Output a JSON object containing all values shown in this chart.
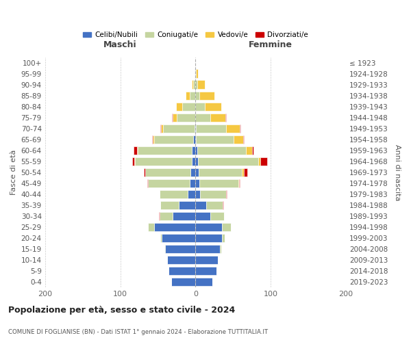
{
  "age_groups": [
    "0-4",
    "5-9",
    "10-14",
    "15-19",
    "20-24",
    "25-29",
    "30-34",
    "35-39",
    "40-44",
    "45-49",
    "50-54",
    "55-59",
    "60-64",
    "65-69",
    "70-74",
    "75-79",
    "80-84",
    "85-89",
    "90-94",
    "95-99",
    "100+"
  ],
  "birth_years": [
    "2019-2023",
    "2014-2018",
    "2009-2013",
    "2004-2008",
    "1999-2003",
    "1994-1998",
    "1989-1993",
    "1984-1988",
    "1979-1983",
    "1974-1978",
    "1969-1973",
    "1964-1968",
    "1959-1963",
    "1954-1958",
    "1949-1953",
    "1944-1948",
    "1939-1943",
    "1934-1938",
    "1929-1933",
    "1924-1928",
    "≤ 1923"
  ],
  "male": {
    "celibi": [
      32,
      36,
      38,
      40,
      45,
      55,
      30,
      22,
      10,
      8,
      7,
      5,
      5,
      3,
      1,
      0,
      0,
      0,
      0,
      0,
      0
    ],
    "coniugati": [
      0,
      0,
      0,
      1,
      2,
      8,
      18,
      25,
      38,
      55,
      60,
      75,
      72,
      52,
      42,
      25,
      18,
      8,
      3,
      1,
      0
    ],
    "vedovi": [
      0,
      0,
      0,
      0,
      0,
      0,
      0,
      0,
      0,
      0,
      0,
      1,
      1,
      2,
      3,
      5,
      8,
      5,
      2,
      0,
      0
    ],
    "divorziati": [
      0,
      0,
      0,
      0,
      0,
      0,
      1,
      0,
      0,
      1,
      2,
      3,
      4,
      1,
      1,
      1,
      0,
      0,
      0,
      0,
      0
    ]
  },
  "female": {
    "nubili": [
      22,
      28,
      30,
      32,
      35,
      35,
      20,
      14,
      6,
      5,
      4,
      3,
      2,
      1,
      1,
      0,
      0,
      0,
      0,
      0,
      0
    ],
    "coniugate": [
      0,
      0,
      0,
      2,
      4,
      12,
      18,
      22,
      35,
      52,
      58,
      80,
      65,
      50,
      40,
      20,
      12,
      5,
      2,
      1,
      0
    ],
    "vedove": [
      0,
      0,
      0,
      0,
      0,
      0,
      0,
      0,
      0,
      1,
      2,
      3,
      8,
      12,
      18,
      20,
      22,
      20,
      10,
      2,
      0
    ],
    "divorziate": [
      0,
      0,
      0,
      0,
      0,
      0,
      0,
      1,
      1,
      1,
      5,
      9,
      2,
      1,
      1,
      1,
      0,
      0,
      0,
      0,
      0
    ]
  },
  "colors": {
    "celibi": "#4472C4",
    "coniugati": "#C5D5A0",
    "vedovi": "#F5C842",
    "divorziati": "#CC0000"
  },
  "title": "Popolazione per età, sesso e stato civile - 2024",
  "subtitle": "COMUNE DI FOGLIANISE (BN) - Dati ISTAT 1° gennaio 2024 - Elaborazione TUTTITALIA.IT",
  "xlabel_left": "Maschi",
  "xlabel_right": "Femmine",
  "ylabel_left": "Fasce di età",
  "ylabel_right": "Anni di nascita",
  "xlim": 200,
  "bg_color": "#ffffff",
  "legend_labels": [
    "Celibi/Nubili",
    "Coniugati/e",
    "Vedovi/e",
    "Divorziati/e"
  ]
}
